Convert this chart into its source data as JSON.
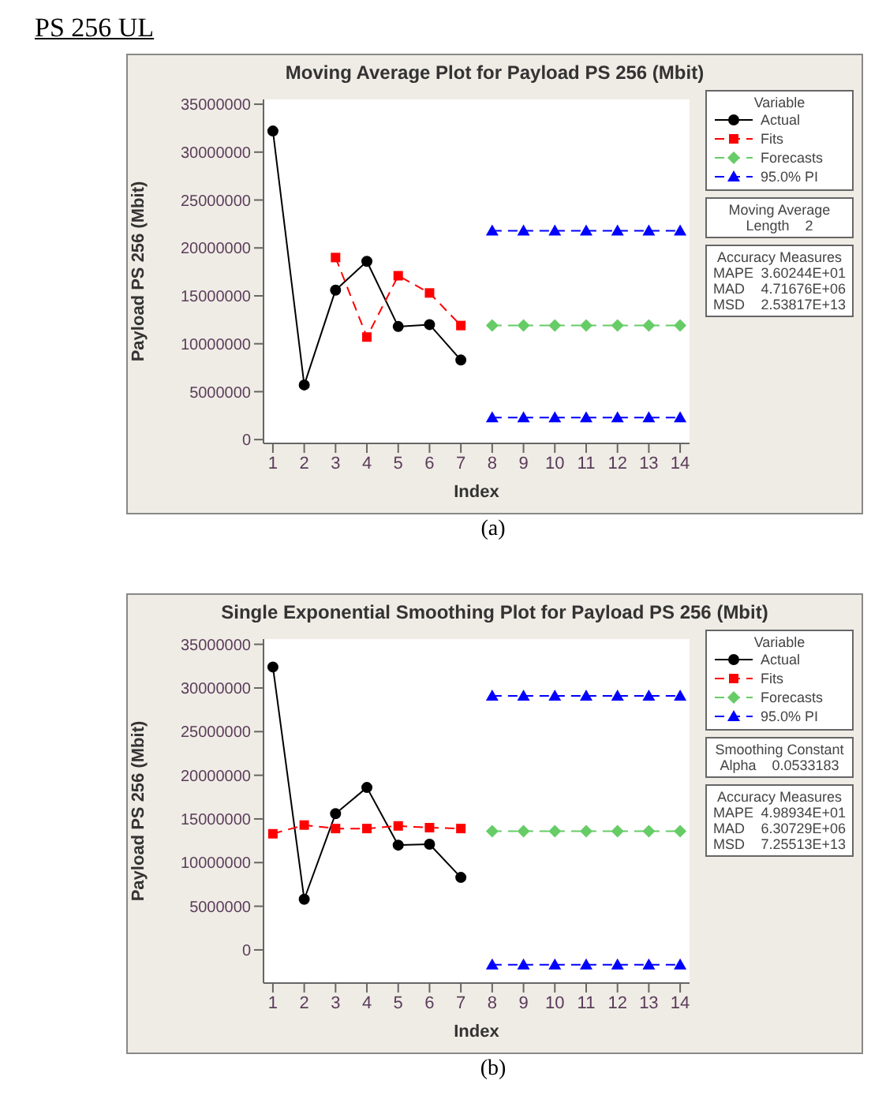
{
  "chart_data": [
    {
      "type": "line",
      "title": "Moving Average Plot for Payload PS 256 (Mbit)",
      "xlabel": "Index",
      "ylabel": "Payload PS 256 (Mbit)",
      "legend_title": "Variable",
      "legend": "right",
      "grid": false,
      "xlim": [
        0.7,
        14.3
      ],
      "xticks": [
        1,
        2,
        3,
        4,
        5,
        6,
        7,
        8,
        9,
        10,
        11,
        12,
        13,
        14
      ],
      "ylim": [
        -400000,
        35500000
      ],
      "yticks": [
        0,
        5000000,
        10000000,
        15000000,
        20000000,
        25000000,
        30000000,
        35000000
      ],
      "series": [
        {
          "name": "Actual",
          "color": "#000000",
          "marker": "circle",
          "line_style": "solid",
          "x": [
            1,
            2,
            3,
            4,
            5,
            6,
            7
          ],
          "values": [
            32200000,
            5700000,
            15600000,
            18600000,
            11800000,
            12000000,
            8300000
          ]
        },
        {
          "name": "Fits",
          "color": "#ff0000",
          "marker": "square",
          "line_style": "dashed",
          "x": [
            3,
            4,
            5,
            6,
            7
          ],
          "values": [
            19000000,
            10700000,
            17100000,
            15300000,
            11900000
          ]
        },
        {
          "name": "Forecasts",
          "color": "#66cc66",
          "marker": "diamond",
          "line_style": "dashed",
          "x": [
            8,
            9,
            10,
            11,
            12,
            13,
            14
          ],
          "values": [
            11900000,
            11900000,
            11900000,
            11900000,
            11900000,
            11900000,
            11900000
          ]
        },
        {
          "name": "95.0% PI",
          "color": "#0000ff",
          "marker": "triangle",
          "line_style": "dashed",
          "x": [
            8,
            9,
            10,
            11,
            12,
            13,
            14
          ],
          "values": [
            21800000,
            21800000,
            21800000,
            21800000,
            21800000,
            21800000,
            21800000
          ]
        },
        {
          "color": "#0000ff",
          "marker": "triangle",
          "line_style": "dashed",
          "x": [
            8,
            9,
            10,
            11,
            12,
            13,
            14
          ],
          "values": [
            2300000,
            2300000,
            2300000,
            2300000,
            2300000,
            2300000,
            2300000
          ]
        }
      ],
      "annotations": [
        "Moving Average",
        "Length 2",
        "Accuracy Measures",
        "MAPE 3.60244E+01",
        "MAD 4.71676E+06",
        "MSD 2.53817E+13",
        "(a)",
        "PS 256 UL"
      ]
    },
    {
      "type": "line",
      "title": "Single Exponential Smoothing Plot for Payload PS 256 (Mbit)",
      "xlabel": "Index",
      "ylabel": "Payload PS 256 (Mbit)",
      "legend_title": "Variable",
      "legend": "right",
      "grid": false,
      "xlim": [
        0.7,
        14.3
      ],
      "xticks": [
        1,
        2,
        3,
        4,
        5,
        6,
        7,
        8,
        9,
        10,
        11,
        12,
        13,
        14
      ],
      "ylim": [
        -3800000,
        35600000
      ],
      "yticks": [
        0,
        5000000,
        10000000,
        15000000,
        20000000,
        25000000,
        30000000,
        35000000
      ],
      "series": [
        {
          "name": "Actual",
          "color": "#000000",
          "marker": "circle",
          "line_style": "solid",
          "x": [
            1,
            2,
            3,
            4,
            5,
            6,
            7
          ],
          "values": [
            32400000,
            5800000,
            15600000,
            18600000,
            12000000,
            12100000,
            8300000
          ]
        },
        {
          "name": "Fits",
          "color": "#ff0000",
          "marker": "square",
          "line_style": "dashed",
          "x": [
            1,
            2,
            3,
            4,
            5,
            6,
            7
          ],
          "values": [
            13300000,
            14300000,
            13900000,
            13900000,
            14200000,
            14000000,
            13900000
          ]
        },
        {
          "name": "Forecasts",
          "color": "#66cc66",
          "marker": "diamond",
          "line_style": "dashed",
          "x": [
            8,
            9,
            10,
            11,
            12,
            13,
            14
          ],
          "values": [
            13600000,
            13600000,
            13600000,
            13600000,
            13600000,
            13600000,
            13600000
          ]
        },
        {
          "name": "95.0% PI",
          "color": "#0000ff",
          "marker": "triangle",
          "line_style": "dashed",
          "x": [
            8,
            9,
            10,
            11,
            12,
            13,
            14
          ],
          "values": [
            29100000,
            29100000,
            29100000,
            29100000,
            29100000,
            29100000,
            29100000
          ]
        },
        {
          "color": "#0000ff",
          "marker": "triangle",
          "line_style": "dashed",
          "x": [
            8,
            9,
            10,
            11,
            12,
            13,
            14
          ],
          "values": [
            -1700000,
            -1700000,
            -1700000,
            -1700000,
            -1700000,
            -1700000,
            -1700000
          ]
        }
      ],
      "annotations": [
        "Smoothing Constant",
        "Alpha 0.0533183",
        "Accuracy Measures",
        "MAPE 4.98934E+01",
        "MAD 6.30729E+06",
        "MSD 7.25513E+13",
        "(b)"
      ]
    }
  ]
}
